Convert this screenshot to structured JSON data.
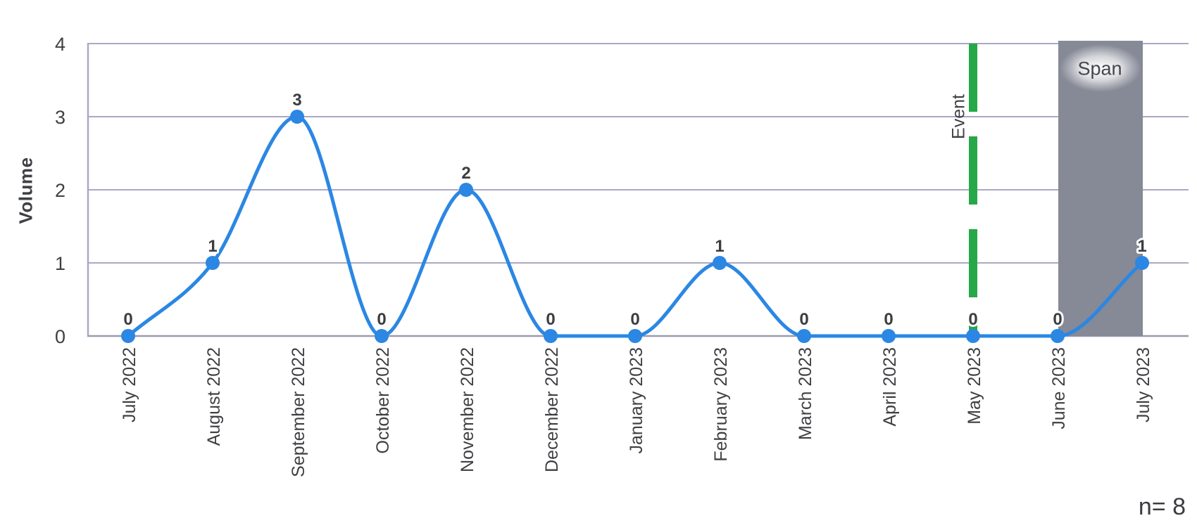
{
  "chart_data": {
    "type": "line",
    "title": "",
    "xlabel": "",
    "ylabel": "Volume",
    "categories": [
      "July 2022",
      "August 2022",
      "September 2022",
      "October 2022",
      "November 2022",
      "December 2022",
      "January 2023",
      "February 2023",
      "March 2023",
      "April 2023",
      "May 2023",
      "June 2023",
      "July 2023"
    ],
    "values": [
      0,
      1,
      3,
      0,
      2,
      0,
      0,
      1,
      0,
      0,
      0,
      0,
      1
    ],
    "data_labels": [
      "0",
      "1",
      "3",
      "0",
      "2",
      "0",
      "0",
      "1",
      "0",
      "0",
      "0",
      "0",
      "1"
    ],
    "ylim": [
      0,
      4
    ],
    "yticks": [
      0,
      1,
      2,
      3,
      4
    ],
    "grid": true,
    "legend": "none",
    "smooth": true,
    "annotations": {
      "event": {
        "label": "Event",
        "category": "May 2023",
        "style": "dashed-vertical-line",
        "color": "#27a848"
      },
      "span": {
        "label": "Span",
        "from_category": "June 2023",
        "to_category": "July 2023",
        "color": "#868996"
      }
    },
    "note": "n= 8",
    "style": {
      "line_color": "#2b87e3",
      "marker_color": "#2b87e3",
      "grid_color": "#a9a9c4",
      "axis_color": "#9a9aae",
      "event_color": "#27a848",
      "span_color": "#868996",
      "text_color": "#3f4043",
      "label_halo": "#ffffff",
      "background": "#ffffff"
    }
  }
}
